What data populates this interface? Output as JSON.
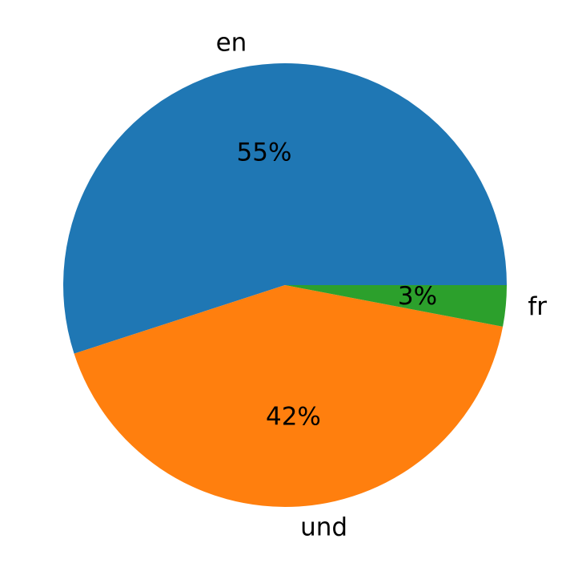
{
  "chart_data": {
    "type": "pie",
    "categories": [
      "en",
      "und",
      "fr"
    ],
    "values": [
      55,
      42,
      3
    ],
    "value_labels": [
      "55%",
      "42%",
      "3%"
    ],
    "colors": [
      "#1f77b4",
      "#ff7f0e",
      "#2ca02c"
    ]
  }
}
